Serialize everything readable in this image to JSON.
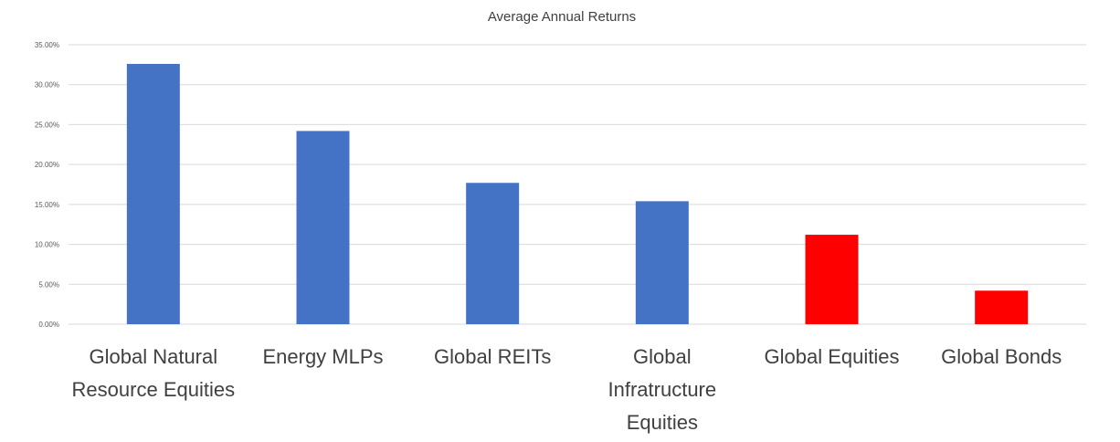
{
  "chart_data": {
    "type": "bar",
    "title": "Average Annual Returns",
    "categories": [
      [
        "Global Natural",
        "Resource Equities"
      ],
      [
        "Energy MLPs"
      ],
      [
        "Global REITs"
      ],
      [
        "Global",
        "Infratructure",
        "Equities"
      ],
      [
        "Global Equities"
      ],
      [
        "Global Bonds"
      ]
    ],
    "values": [
      32.6,
      24.2,
      17.7,
      15.4,
      11.2,
      4.2
    ],
    "colors": [
      "#4472C4",
      "#4472C4",
      "#4472C4",
      "#4472C4",
      "#FF0000",
      "#FF0000"
    ],
    "ylim": [
      0,
      35
    ],
    "yticks": [
      0,
      5,
      10,
      15,
      20,
      25,
      30,
      35
    ],
    "ytick_labels": [
      "0.00%",
      "5.00%",
      "10.00%",
      "15.00%",
      "20.00%",
      "25.00%",
      "30.00%",
      "35.00%"
    ],
    "grid": true,
    "legend": "none"
  },
  "colors": {
    "grid": "#D9D9D9"
  }
}
